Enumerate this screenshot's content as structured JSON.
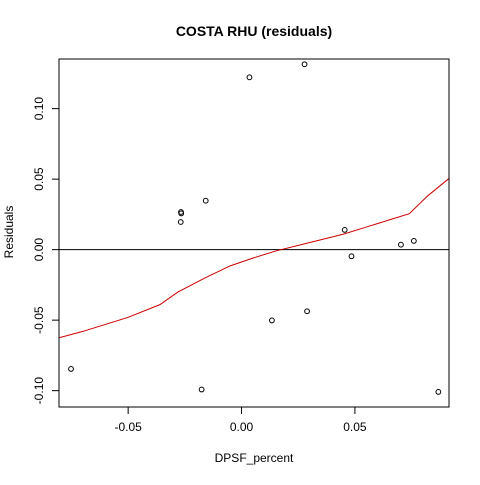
{
  "chart_data": {
    "type": "scatter",
    "title": "COSTA RHU (residuals)",
    "xlabel": "DPSF_percent",
    "ylabel": "Residuals",
    "xlim": [
      -0.0805,
      0.0915
    ],
    "ylim": [
      -0.1116,
      0.1352
    ],
    "xticks": [
      -0.05,
      0.0,
      0.05
    ],
    "xtick_labels": [
      "-0.05",
      "0.00",
      "0.05"
    ],
    "yticks": [
      -0.1,
      -0.05,
      0.0,
      0.05,
      0.1
    ],
    "ytick_labels": [
      "-0.10",
      "-0.05",
      "0.00",
      "0.05",
      "0.10"
    ],
    "grid": false,
    "points": {
      "x": [
        -0.0752,
        -0.0267,
        -0.0266,
        -0.0268,
        -0.0158,
        -0.0176,
        0.0035,
        0.0278,
        0.0134,
        0.0289,
        0.0455,
        0.0485,
        0.0703,
        0.076,
        0.0868
      ],
      "y": [
        -0.0846,
        0.0267,
        0.0257,
        0.0196,
        0.0347,
        -0.0992,
        0.1222,
        0.1315,
        -0.0502,
        -0.0437,
        0.014,
        -0.0047,
        0.0035,
        0.0062,
        -0.1009
      ],
      "marker": "open-circle",
      "color": "#000000"
    },
    "reference_line": {
      "y": 0.0,
      "color": "#000000"
    },
    "smooth_line": {
      "x": [
        -0.0805,
        -0.07,
        -0.05,
        -0.036,
        -0.028,
        -0.016,
        -0.005,
        0.005,
        0.015,
        0.025,
        0.035,
        0.045,
        0.055,
        0.065,
        0.074,
        0.082,
        0.0915
      ],
      "y": [
        -0.0625,
        -0.058,
        -0.048,
        -0.039,
        -0.03,
        -0.02,
        -0.0115,
        -0.006,
        -0.001,
        0.003,
        0.007,
        0.011,
        0.016,
        0.021,
        0.0255,
        0.038,
        0.0505
      ],
      "color": "#cc0000"
    }
  }
}
